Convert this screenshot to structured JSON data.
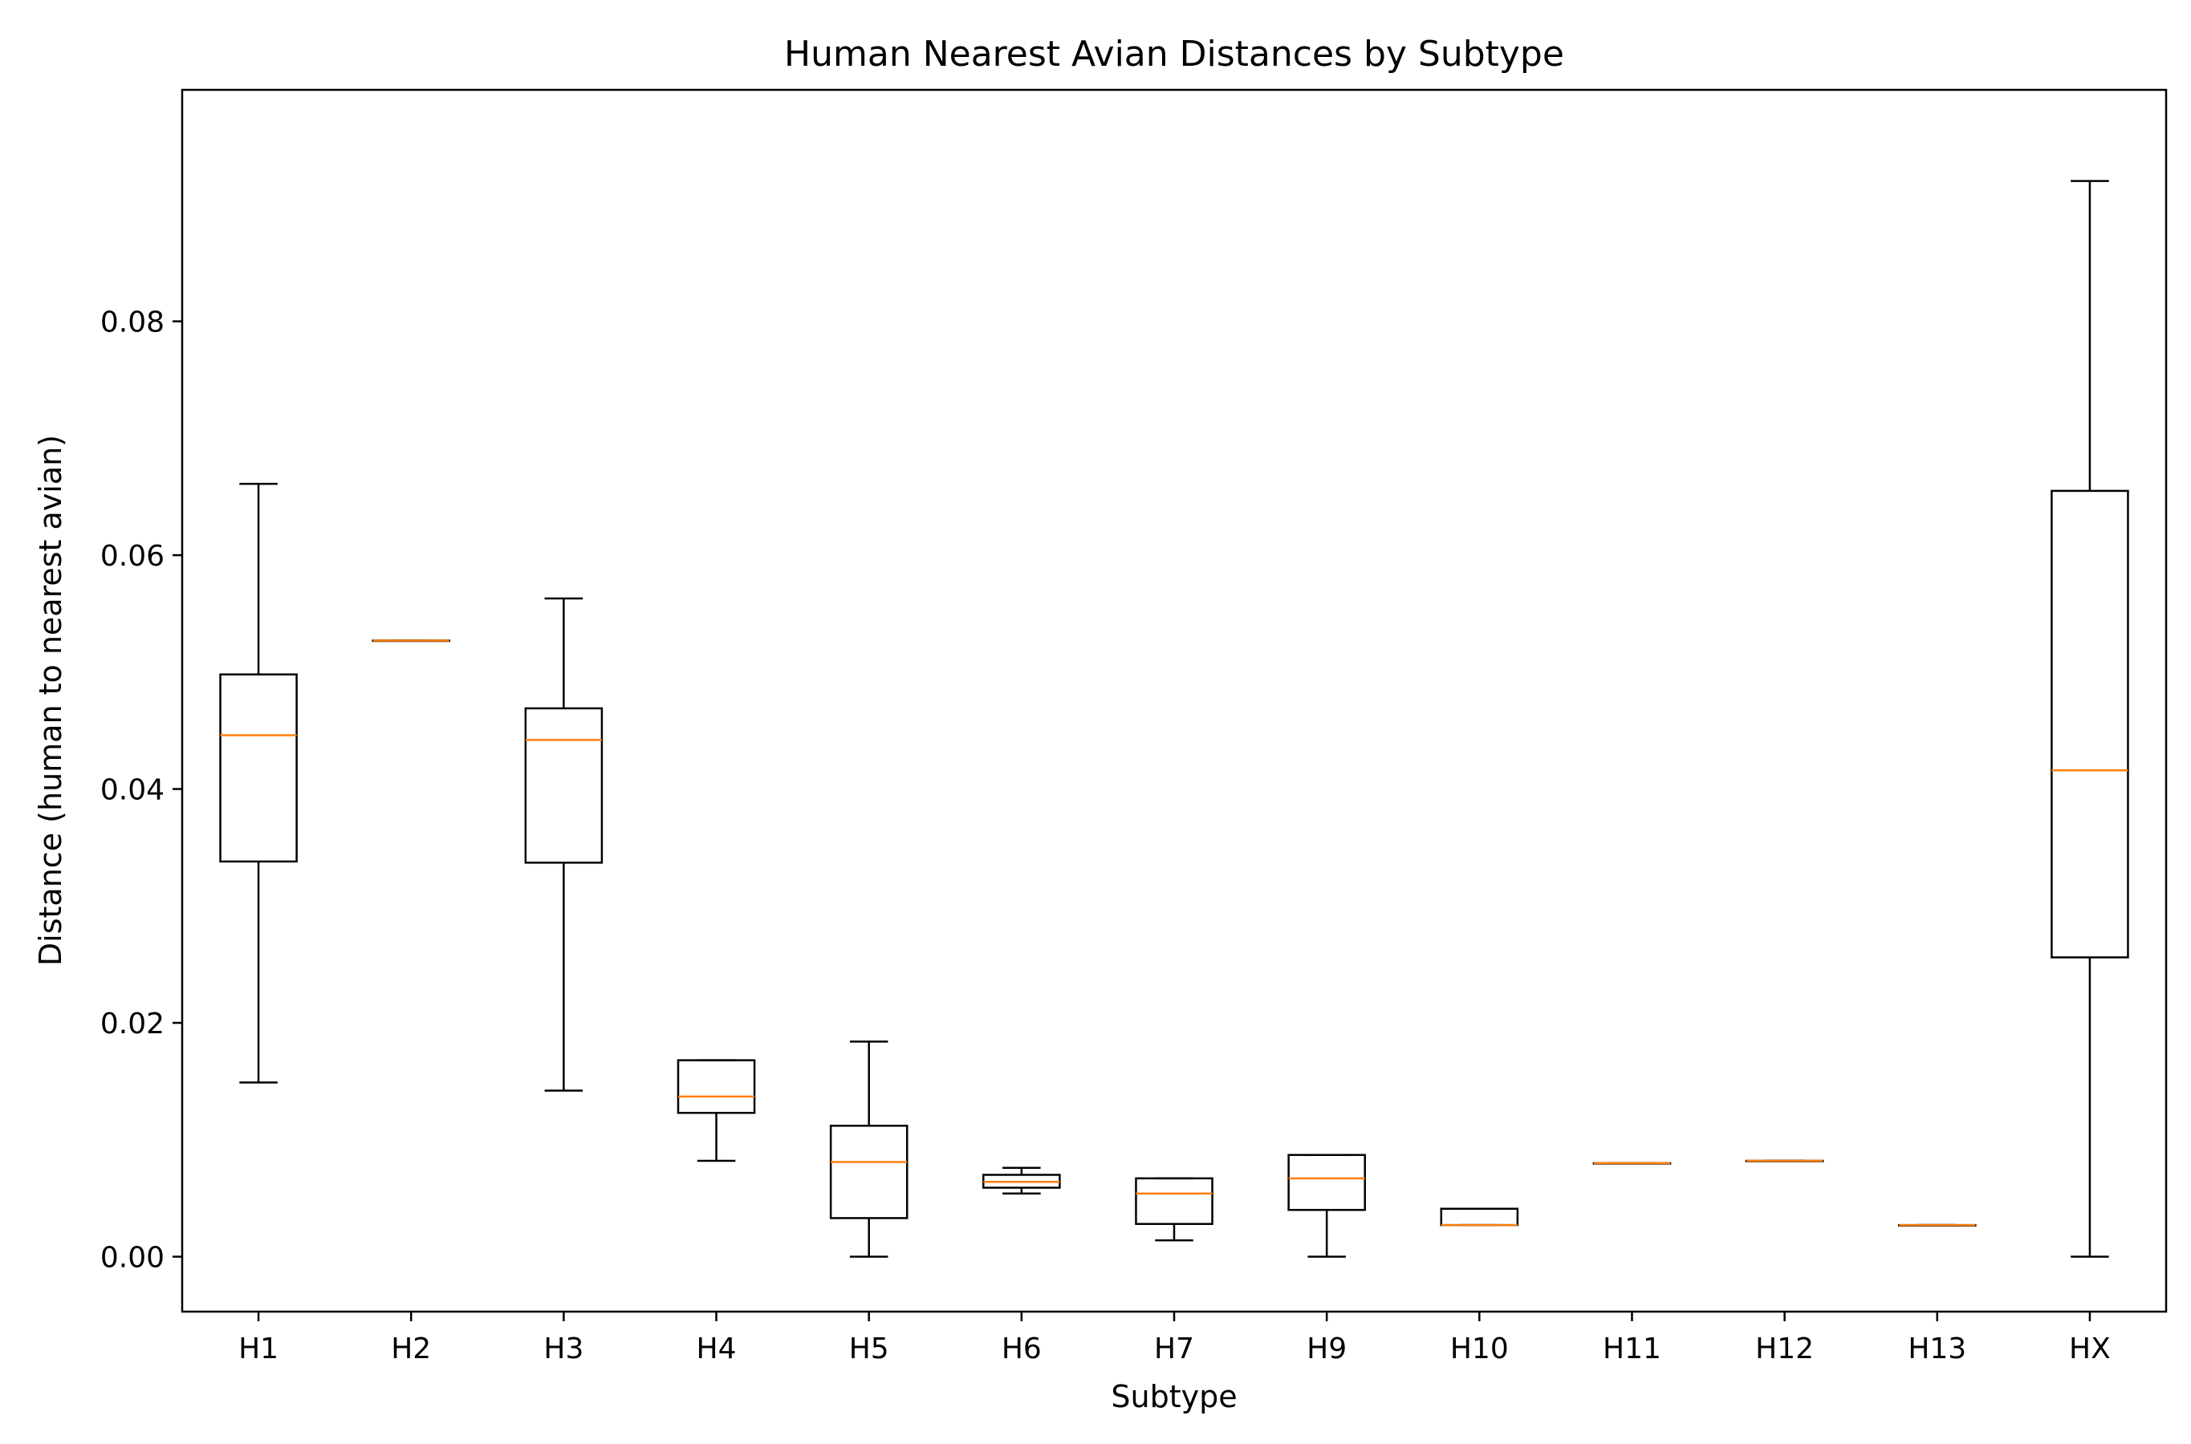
{
  "chart_data": {
    "type": "boxplot",
    "title": "Human Nearest Avian Distances by Subtype",
    "xlabel": "Subtype",
    "ylabel": "Distance (human to nearest avian)",
    "ylim": [
      -0.0047,
      0.0998
    ],
    "yticks": [
      0.0,
      0.02,
      0.04,
      0.06,
      0.08
    ],
    "ytick_labels": [
      "0.00",
      "0.02",
      "0.04",
      "0.06",
      "0.08"
    ],
    "grid": false,
    "legend": false,
    "colors": {
      "box": "#000000",
      "median": "#ff7f0e"
    },
    "categories": [
      "H1",
      "H2",
      "H3",
      "H4",
      "H5",
      "H6",
      "H7",
      "H9",
      "H10",
      "H11",
      "H12",
      "H13",
      "HX"
    ],
    "boxes": [
      {
        "label": "H1",
        "whislo": 0.0149,
        "q1": 0.0338,
        "med": 0.0446,
        "q3": 0.0498,
        "whishi": 0.0661
      },
      {
        "label": "H2",
        "whislo": 0.0527,
        "q1": 0.0527,
        "med": 0.0527,
        "q3": 0.0527,
        "whishi": 0.0527
      },
      {
        "label": "H3",
        "whislo": 0.0142,
        "q1": 0.0337,
        "med": 0.0442,
        "q3": 0.0469,
        "whishi": 0.0563
      },
      {
        "label": "H4",
        "whislo": 0.0082,
        "q1": 0.0123,
        "med": 0.0137,
        "q3": 0.0168,
        "whishi": 0.0168
      },
      {
        "label": "H5",
        "whislo": 0.0,
        "q1": 0.0033,
        "med": 0.0081,
        "q3": 0.0112,
        "whishi": 0.0184
      },
      {
        "label": "H6",
        "whislo": 0.0054,
        "q1": 0.0059,
        "med": 0.0064,
        "q3": 0.007,
        "whishi": 0.0076
      },
      {
        "label": "H7",
        "whislo": 0.0014,
        "q1": 0.0028,
        "med": 0.0054,
        "q3": 0.0067,
        "whishi": 0.0067
      },
      {
        "label": "H9",
        "whislo": 0.0,
        "q1": 0.004,
        "med": 0.0067,
        "q3": 0.0087,
        "whishi": 0.0087
      },
      {
        "label": "H10",
        "whislo": 0.0027,
        "q1": 0.0027,
        "med": 0.0027,
        "q3": 0.0041,
        "whishi": 0.0041
      },
      {
        "label": "H11",
        "whislo": 0.008,
        "q1": 0.008,
        "med": 0.008,
        "q3": 0.008,
        "whishi": 0.008
      },
      {
        "label": "H12",
        "whislo": 0.0082,
        "q1": 0.0082,
        "med": 0.0082,
        "q3": 0.0082,
        "whishi": 0.0082
      },
      {
        "label": "H13",
        "whislo": 0.0027,
        "q1": 0.0027,
        "med": 0.0027,
        "q3": 0.0027,
        "whishi": 0.0027
      },
      {
        "label": "HX",
        "whislo": 0.0,
        "q1": 0.0256,
        "med": 0.0416,
        "q3": 0.0655,
        "whishi": 0.092
      }
    ]
  }
}
